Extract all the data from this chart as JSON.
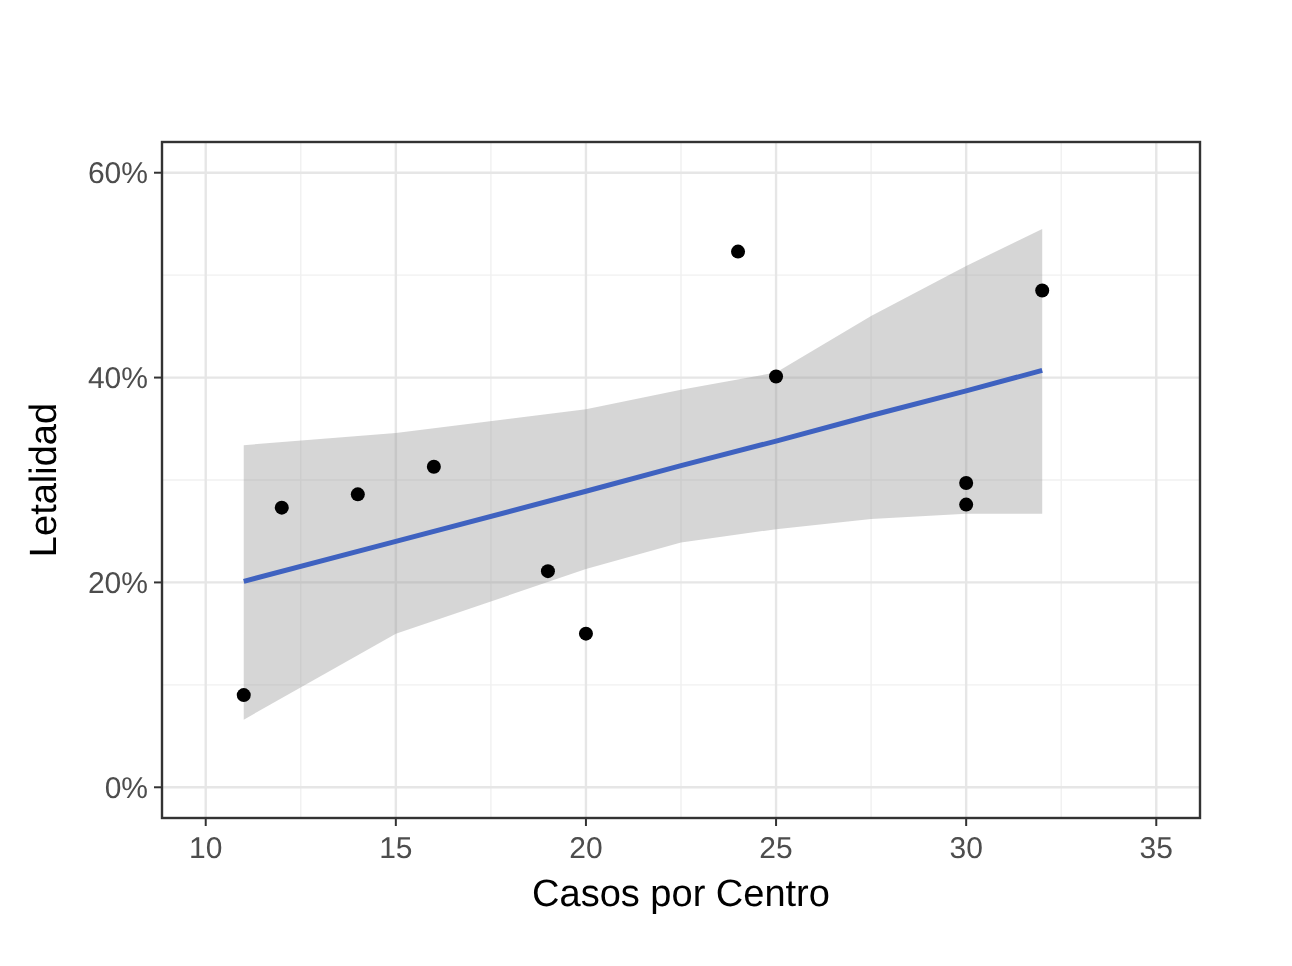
{
  "chart_data": {
    "type": "scatter",
    "xlabel": "Casos por Centro",
    "ylabel": "Letalidad",
    "xlim": [
      8.85,
      36.15
    ],
    "ylim": [
      -3,
      63
    ],
    "xticks": [
      10,
      15,
      20,
      25,
      30,
      35
    ],
    "yticks": [
      {
        "value": 0,
        "label": "0%"
      },
      {
        "value": 20,
        "label": "20%"
      },
      {
        "value": 40,
        "label": "40%"
      },
      {
        "value": 60,
        "label": "60%"
      }
    ],
    "grid": true,
    "series": [
      {
        "type": "line",
        "color": "#3f62c0",
        "marker": "none",
        "x": [
          11,
          15,
          20,
          22.5,
          25,
          27.5,
          30,
          32
        ],
        "values": [
          20.1,
          24.0,
          28.9,
          31.4,
          33.8,
          36.3,
          38.7,
          40.7
        ],
        "lower": [
          6.6,
          15.0,
          21.3,
          23.9,
          25.2,
          26.2,
          26.7,
          26.7
        ],
        "upper": [
          33.4,
          34.6,
          36.9,
          38.8,
          40.5,
          46.0,
          50.9,
          54.5
        ]
      },
      {
        "color": "#000000",
        "marker": "circle",
        "x": [
          11,
          12,
          14,
          16,
          19,
          20,
          24,
          25,
          30,
          30,
          32
        ],
        "values": [
          9.0,
          27.3,
          28.6,
          31.3,
          21.1,
          15.0,
          52.3,
          40.1,
          29.7,
          27.6,
          48.5
        ]
      }
    ]
  }
}
